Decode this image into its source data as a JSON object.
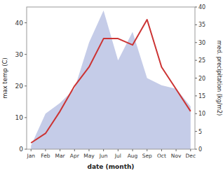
{
  "chart_data": {
    "type": "line",
    "x_label": "date (month)",
    "y_label": "max temp (C)",
    "y2_label": "med. precipitation (kg/m2)",
    "categories": [
      "Jan",
      "Feb",
      "Mar",
      "Apr",
      "May",
      "Jun",
      "Jul",
      "Aug",
      "Sep",
      "Oct",
      "Nov",
      "Dec"
    ],
    "series": [
      {
        "type": "area",
        "axis": "y2",
        "color": "#c5cce8",
        "values": [
          1,
          10,
          13,
          17,
          30,
          39,
          25,
          33,
          20,
          18,
          17,
          12
        ]
      },
      {
        "type": "line",
        "color": "#cc3333",
        "values": [
          2,
          5,
          12,
          20,
          26,
          35,
          35,
          33,
          41,
          26,
          19,
          12
        ]
      }
    ],
    "ylim": [
      0,
      45
    ],
    "yticks": [
      0,
      10,
      20,
      30,
      40
    ],
    "y2lim": [
      0,
      40
    ],
    "y2ticks": [
      0,
      5,
      10,
      15,
      20,
      25,
      30,
      35,
      40
    ]
  }
}
